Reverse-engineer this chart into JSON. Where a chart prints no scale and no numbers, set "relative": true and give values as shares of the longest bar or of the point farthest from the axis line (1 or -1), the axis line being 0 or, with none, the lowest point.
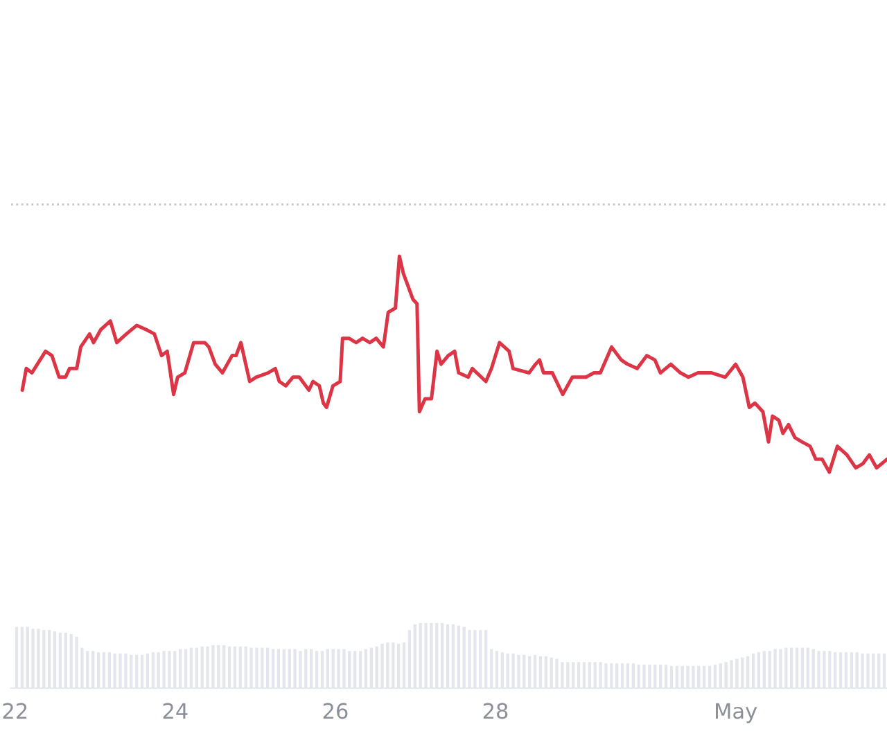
{
  "chart_data": [
    {
      "type": "line",
      "relative": true,
      "color": "#dc3545",
      "xlim": [
        21.95,
        32.89
      ],
      "xticks": [
        22,
        24,
        26,
        28,
        {
          "value": 31,
          "label": "May"
        }
      ],
      "x": [
        22.09,
        22.14,
        22.21,
        22.38,
        22.46,
        22.55,
        22.63,
        22.68,
        22.77,
        22.82,
        22.93,
        22.98,
        23.07,
        23.19,
        23.27,
        23.39,
        23.52,
        23.64,
        23.74,
        23.83,
        23.9,
        23.98,
        24.03,
        24.12,
        24.23,
        24.37,
        24.42,
        24.5,
        24.59,
        24.71,
        24.76,
        24.82,
        24.93,
        25.01,
        25.16,
        25.25,
        25.3,
        25.38,
        25.47,
        25.55,
        25.67,
        25.72,
        25.8,
        25.85,
        25.89,
        25.97,
        26.06,
        26.09,
        26.17,
        26.26,
        26.34,
        26.43,
        26.51,
        26.6,
        26.66,
        26.75,
        26.8,
        26.85,
        26.97,
        27.02,
        27.05,
        27.12,
        27.2,
        27.27,
        27.32,
        27.41,
        27.49,
        27.54,
        27.66,
        27.71,
        27.88,
        27.95,
        28.05,
        28.17,
        28.22,
        28.42,
        28.5,
        28.55,
        28.6,
        28.71,
        28.84,
        28.96,
        29.13,
        29.23,
        29.31,
        29.45,
        29.57,
        29.65,
        29.77,
        29.89,
        29.99,
        30.06,
        30.19,
        30.31,
        30.41,
        30.53,
        30.7,
        30.87,
        31.0,
        31.09,
        31.17,
        31.24,
        31.34,
        31.41,
        31.46,
        31.54,
        31.59,
        31.66,
        31.74,
        31.83,
        31.93,
        32.0,
        32.08,
        32.17,
        32.27,
        32.39,
        32.5,
        32.59,
        32.67,
        32.76,
        32.89
      ],
      "values": [
        0.69,
        0.74,
        0.73,
        0.78,
        0.77,
        0.72,
        0.72,
        0.74,
        0.74,
        0.79,
        0.82,
        0.8,
        0.83,
        0.85,
        0.8,
        0.82,
        0.84,
        0.83,
        0.82,
        0.77,
        0.78,
        0.68,
        0.72,
        0.73,
        0.8,
        0.8,
        0.79,
        0.75,
        0.73,
        0.77,
        0.77,
        0.8,
        0.71,
        0.72,
        0.73,
        0.74,
        0.71,
        0.7,
        0.72,
        0.72,
        0.69,
        0.71,
        0.7,
        0.66,
        0.65,
        0.7,
        0.71,
        0.81,
        0.81,
        0.8,
        0.81,
        0.8,
        0.81,
        0.79,
        0.87,
        0.88,
        1.0,
        0.96,
        0.9,
        0.89,
        0.64,
        0.67,
        0.67,
        0.78,
        0.75,
        0.77,
        0.78,
        0.73,
        0.72,
        0.74,
        0.71,
        0.74,
        0.8,
        0.78,
        0.74,
        0.73,
        0.75,
        0.76,
        0.73,
        0.73,
        0.68,
        0.72,
        0.72,
        0.73,
        0.73,
        0.79,
        0.76,
        0.75,
        0.74,
        0.77,
        0.76,
        0.73,
        0.75,
        0.73,
        0.72,
        0.73,
        0.73,
        0.72,
        0.75,
        0.72,
        0.65,
        0.66,
        0.64,
        0.57,
        0.63,
        0.62,
        0.59,
        0.61,
        0.58,
        0.57,
        0.56,
        0.53,
        0.53,
        0.5,
        0.56,
        0.54,
        0.51,
        0.52,
        0.54,
        0.51,
        0.53
      ],
      "ref_lines": [
        {
          "axis": "y",
          "value": 1.12,
          "line_style": "dotted",
          "color": "#c8c8c8"
        }
      ]
    },
    {
      "type": "bar",
      "relative": true,
      "color": "#e3e6ec",
      "categories": [
        null,
        null,
        null,
        null,
        null,
        null,
        null,
        null,
        null,
        null,
        null,
        null,
        null,
        null,
        null,
        null,
        null,
        null,
        null,
        null,
        null,
        null,
        null,
        null,
        null,
        null,
        null,
        null,
        null,
        null,
        null,
        null,
        null,
        null,
        null,
        null,
        null,
        null,
        null,
        null,
        null,
        null,
        null,
        null,
        null,
        null,
        null,
        null,
        null,
        null,
        null,
        null,
        null,
        null,
        null,
        null,
        null,
        null,
        null,
        null,
        null,
        null,
        null,
        null,
        null,
        null,
        null,
        null,
        null,
        null,
        null,
        null,
        null,
        null,
        null,
        null,
        null,
        null,
        null,
        null,
        null,
        null,
        null,
        null,
        null,
        null,
        null,
        null,
        null,
        null,
        null,
        null,
        null,
        null,
        null,
        null,
        null,
        null,
        null,
        null,
        null,
        null,
        null,
        null,
        null,
        null,
        null,
        null,
        null,
        null,
        null,
        null,
        null,
        null,
        null,
        null,
        null,
        null,
        null,
        null,
        null,
        null,
        null,
        null,
        null,
        null,
        null,
        null,
        null,
        null,
        null,
        null,
        null,
        null,
        null,
        null,
        null,
        null,
        null,
        null,
        null,
        null,
        null,
        null,
        null,
        null,
        null,
        null,
        null,
        null,
        null,
        null,
        null,
        null,
        null,
        null,
        null,
        null,
        null,
        null
      ],
      "values": [
        0.94,
        0.94,
        0.94,
        0.91,
        0.91,
        0.89,
        0.89,
        0.87,
        0.85,
        0.85,
        0.83,
        0.79,
        0.62,
        0.57,
        0.57,
        0.55,
        0.55,
        0.55,
        0.53,
        0.53,
        0.53,
        0.51,
        0.51,
        0.51,
        0.53,
        0.55,
        0.55,
        0.57,
        0.57,
        0.57,
        0.6,
        0.6,
        0.62,
        0.62,
        0.64,
        0.64,
        0.66,
        0.66,
        0.66,
        0.64,
        0.64,
        0.64,
        0.64,
        0.62,
        0.62,
        0.62,
        0.62,
        0.6,
        0.6,
        0.6,
        0.6,
        0.6,
        0.57,
        0.6,
        0.6,
        0.57,
        0.57,
        0.6,
        0.6,
        0.6,
        0.6,
        0.57,
        0.57,
        0.57,
        0.6,
        0.62,
        0.64,
        0.68,
        0.7,
        0.7,
        0.68,
        0.7,
        0.89,
        0.98,
        1,
        1,
        1,
        1,
        1,
        0.98,
        0.98,
        0.96,
        0.94,
        0.89,
        0.89,
        0.89,
        0.89,
        0.6,
        0.57,
        0.55,
        0.53,
        0.53,
        0.51,
        0.51,
        0.49,
        0.51,
        0.49,
        0.49,
        0.47,
        0.45,
        0.4,
        0.4,
        0.4,
        0.4,
        0.4,
        0.4,
        0.4,
        0.4,
        0.38,
        0.38,
        0.38,
        0.38,
        0.38,
        0.38,
        0.36,
        0.36,
        0.36,
        0.36,
        0.36,
        0.36,
        0.34,
        0.34,
        0.34,
        0.34,
        0.34,
        0.34,
        0.34,
        0.34,
        0.36,
        0.38,
        0.4,
        0.43,
        0.45,
        0.47,
        0.49,
        0.53,
        0.55,
        0.57,
        0.57,
        0.6,
        0.6,
        0.62,
        0.62,
        0.62,
        0.62,
        0.62,
        0.6,
        0.57,
        0.57,
        0.57,
        0.55,
        0.55,
        0.55,
        0.55,
        0.55,
        0.53,
        0.53,
        0.53,
        0.53,
        0.53
      ]
    }
  ]
}
